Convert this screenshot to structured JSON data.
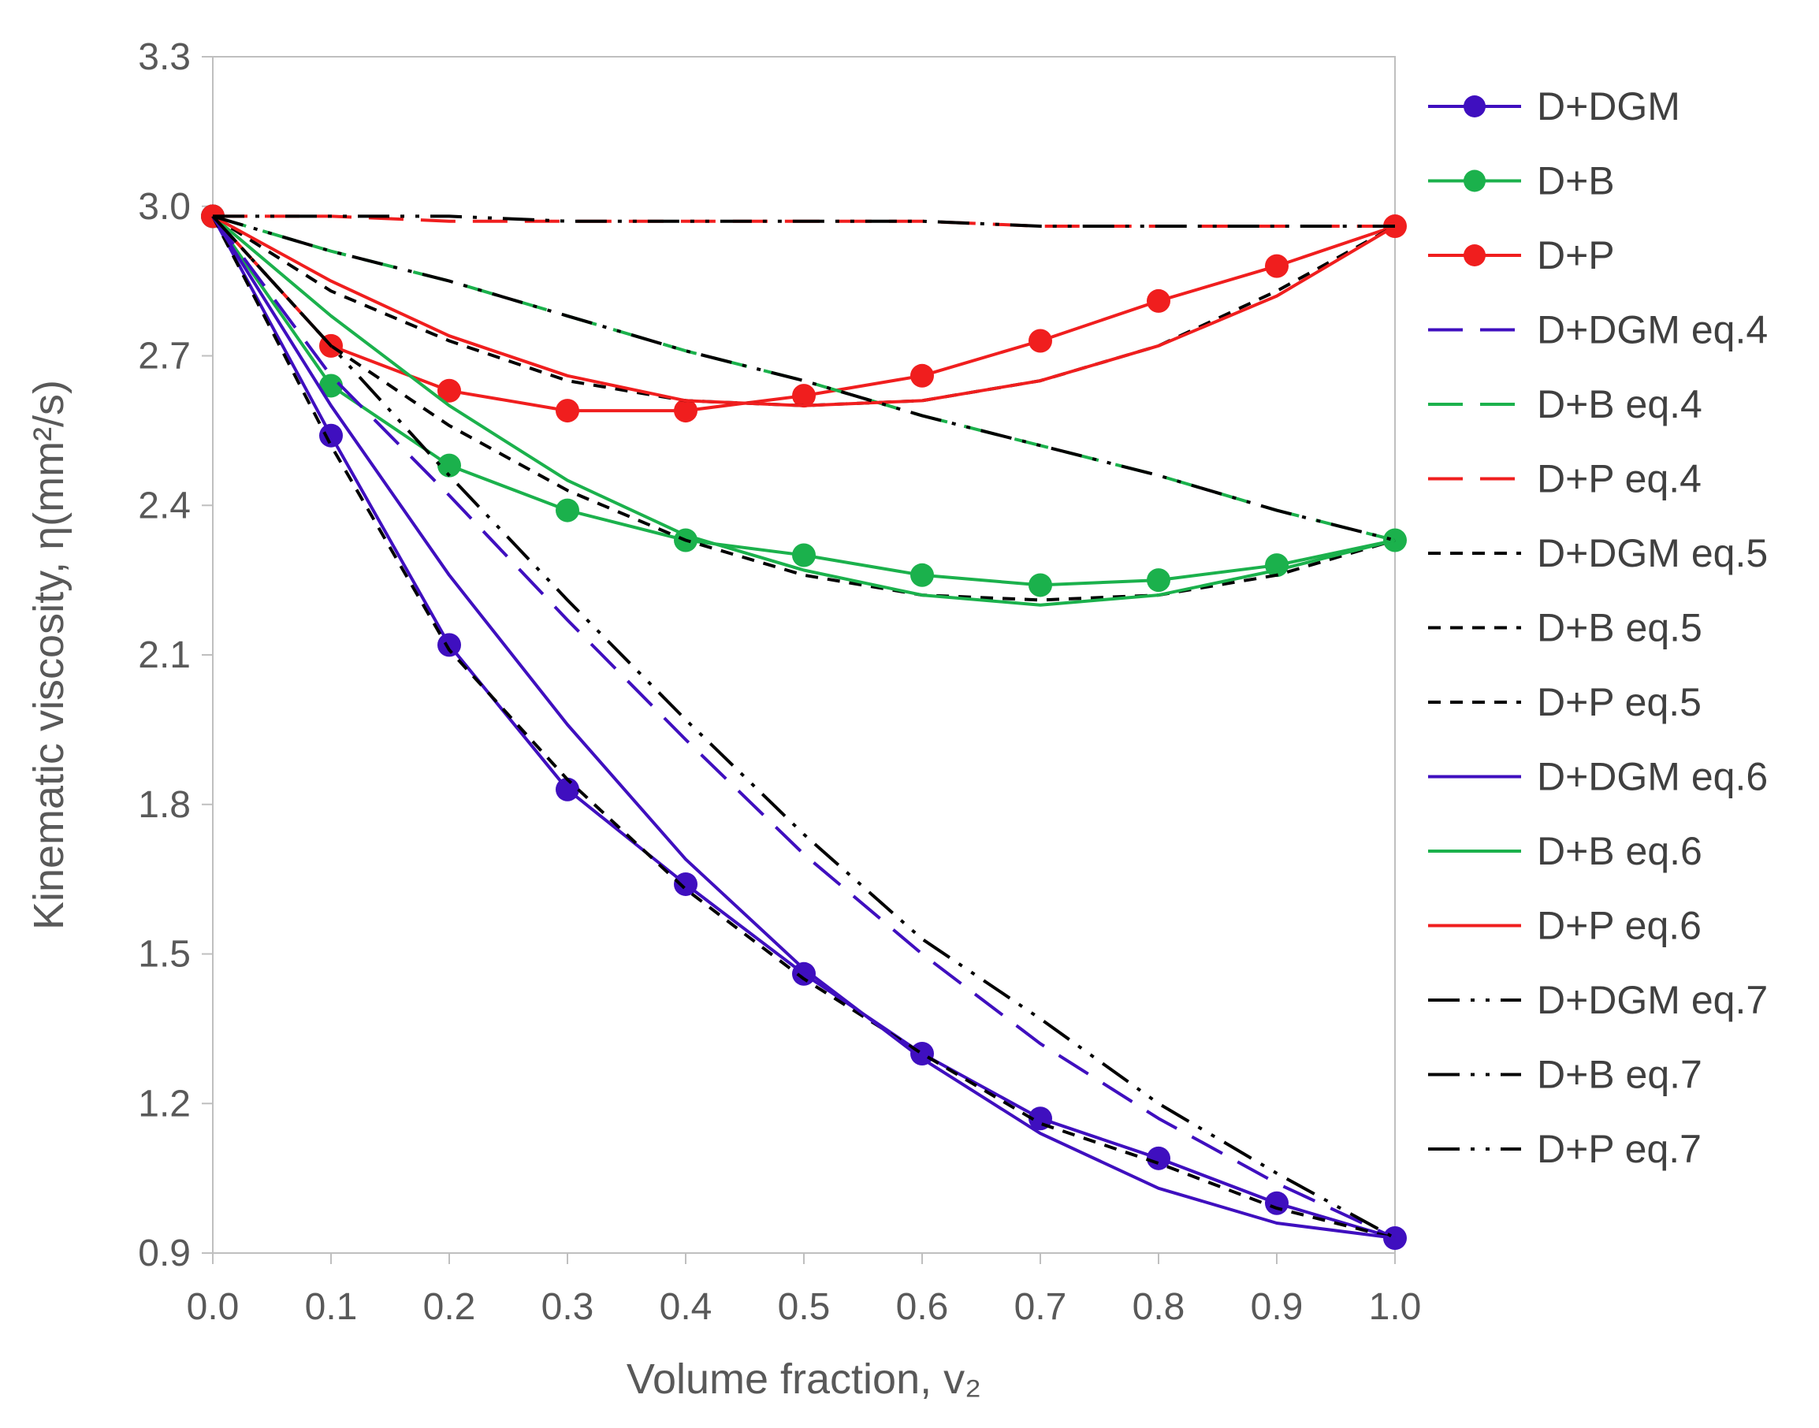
{
  "chart_data": {
    "type": "line",
    "xlabel": "Volume fraction, v₂",
    "ylabel": "Kinematic viscosity, η(mm²/s)",
    "xlim": [
      0,
      1
    ],
    "ylim": [
      0.9,
      3.3
    ],
    "x_ticks": [
      "0.0",
      "0.1",
      "0.2",
      "0.3",
      "0.4",
      "0.5",
      "0.6",
      "0.7",
      "0.8",
      "0.9",
      "1.0"
    ],
    "y_ticks": [
      "0.9",
      "1.2",
      "1.5",
      "1.8",
      "2.1",
      "2.4",
      "2.7",
      "3.0",
      "3.3"
    ],
    "x_tick_values": [
      0,
      0.1,
      0.2,
      0.3,
      0.4,
      0.5,
      0.6,
      0.7,
      0.8,
      0.9,
      1.0
    ],
    "y_tick_values": [
      0.9,
      1.2,
      1.5,
      1.8,
      2.1,
      2.4,
      2.7,
      3.0,
      3.3
    ],
    "grid": false,
    "legend_position": "right",
    "x": [
      0,
      0.1,
      0.2,
      0.3,
      0.4,
      0.5,
      0.6,
      0.7,
      0.8,
      0.9,
      1.0
    ],
    "series": [
      {
        "name": "D+DGM",
        "color": "#3F0FBF",
        "style": "solid-marker",
        "values": [
          2.98,
          2.54,
          2.12,
          1.83,
          1.64,
          1.46,
          1.3,
          1.17,
          1.09,
          1.0,
          0.93
        ]
      },
      {
        "name": "D+B",
        "color": "#1BB14C",
        "style": "solid-marker",
        "values": [
          2.98,
          2.64,
          2.48,
          2.39,
          2.33,
          2.3,
          2.26,
          2.24,
          2.25,
          2.28,
          2.33
        ]
      },
      {
        "name": "D+P",
        "color": "#F01E1E",
        "style": "solid-marker",
        "values": [
          2.98,
          2.72,
          2.63,
          2.59,
          2.59,
          2.62,
          2.66,
          2.73,
          2.81,
          2.88,
          2.96
        ]
      },
      {
        "name": "D+DGM eq.4",
        "color": "#3F0FBF",
        "style": "long-dash",
        "values": [
          2.98,
          2.66,
          2.42,
          2.17,
          1.93,
          1.7,
          1.5,
          1.32,
          1.17,
          1.04,
          0.93
        ]
      },
      {
        "name": "D+B eq.4",
        "color": "#1BB14C",
        "style": "long-dash",
        "values": [
          2.98,
          2.91,
          2.85,
          2.78,
          2.71,
          2.65,
          2.58,
          2.52,
          2.46,
          2.39,
          2.33
        ]
      },
      {
        "name": "D+P eq.4",
        "color": "#F01E1E",
        "style": "long-dash",
        "values": [
          2.98,
          2.98,
          2.97,
          2.97,
          2.97,
          2.97,
          2.97,
          2.96,
          2.96,
          2.96,
          2.96
        ]
      },
      {
        "name": "D+DGM eq.5",
        "color": "#000000",
        "style": "short-dash",
        "values": [
          2.98,
          2.52,
          2.11,
          1.85,
          1.63,
          1.45,
          1.3,
          1.16,
          1.08,
          0.99,
          0.93
        ]
      },
      {
        "name": "D+B eq.5",
        "color": "#000000",
        "style": "short-dash",
        "values": [
          2.98,
          2.72,
          2.56,
          2.43,
          2.33,
          2.26,
          2.22,
          2.21,
          2.22,
          2.26,
          2.33
        ]
      },
      {
        "name": "D+P eq.5",
        "color": "#000000",
        "style": "short-dash",
        "values": [
          2.98,
          2.83,
          2.73,
          2.65,
          2.61,
          2.6,
          2.61,
          2.65,
          2.72,
          2.83,
          2.96
        ]
      },
      {
        "name": "D+DGM eq.6",
        "color": "#3F0FBF",
        "style": "solid",
        "values": [
          2.98,
          2.6,
          2.26,
          1.96,
          1.69,
          1.47,
          1.29,
          1.14,
          1.03,
          0.96,
          0.93
        ]
      },
      {
        "name": "D+B eq.6",
        "color": "#1BB14C",
        "style": "solid",
        "values": [
          2.98,
          2.78,
          2.6,
          2.45,
          2.34,
          2.27,
          2.22,
          2.2,
          2.22,
          2.27,
          2.33
        ]
      },
      {
        "name": "D+P eq.6",
        "color": "#F01E1E",
        "style": "solid",
        "values": [
          2.98,
          2.85,
          2.74,
          2.66,
          2.61,
          2.6,
          2.61,
          2.65,
          2.72,
          2.82,
          2.96
        ]
      },
      {
        "name": "D+DGM eq.7",
        "color": "#000000",
        "style": "dash-dot-dot",
        "values": [
          2.98,
          2.72,
          2.46,
          2.21,
          1.97,
          1.74,
          1.53,
          1.37,
          1.2,
          1.06,
          0.93
        ]
      },
      {
        "name": "D+B eq.7",
        "color": "#000000",
        "style": "dash-dot-dot",
        "values": [
          2.98,
          2.91,
          2.85,
          2.78,
          2.71,
          2.65,
          2.58,
          2.52,
          2.46,
          2.39,
          2.33
        ]
      },
      {
        "name": "D+P eq.7",
        "color": "#000000",
        "style": "dash-dot-dot",
        "values": [
          2.98,
          2.98,
          2.98,
          2.97,
          2.97,
          2.97,
          2.97,
          2.96,
          2.96,
          2.96,
          2.96
        ]
      }
    ]
  }
}
